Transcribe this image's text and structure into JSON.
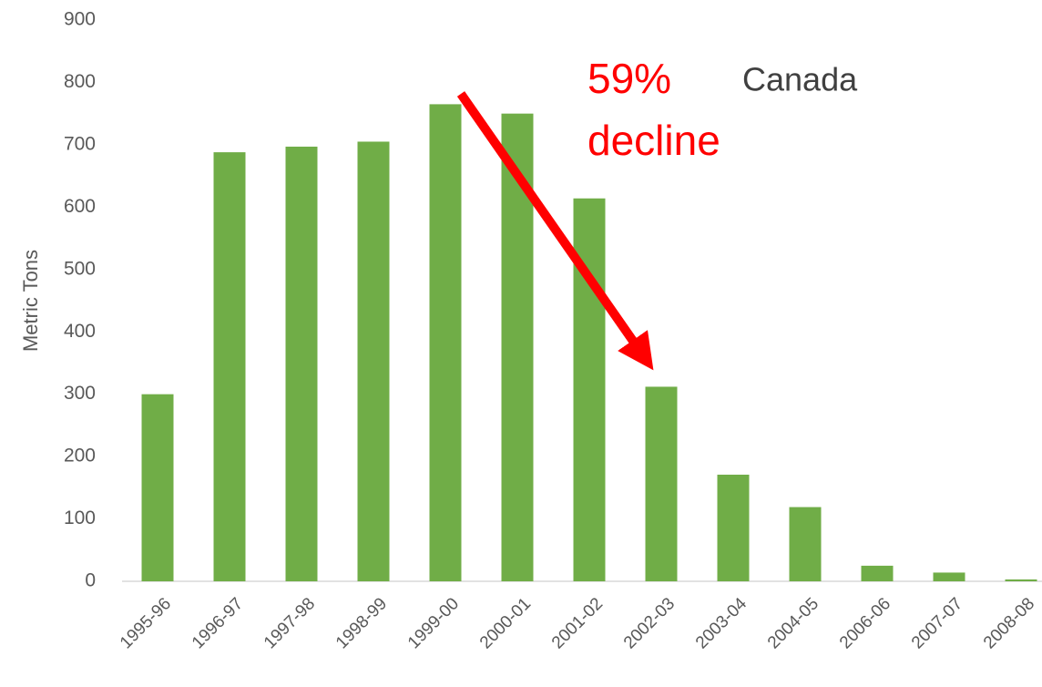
{
  "chart_data": {
    "type": "bar",
    "y_label": "Metric Tons",
    "categories": [
      "1995-96",
      "1996-97",
      "1997-98",
      "1998-99",
      "1999-00",
      "2000-01",
      "2001-02",
      "2002-03",
      "2003-04",
      "2004-05",
      "2006-06",
      "2007-07",
      "2008-08"
    ],
    "values": [
      300,
      688,
      697,
      705,
      765,
      750,
      614,
      312,
      171,
      119,
      25,
      14,
      3
    ],
    "color": "#70ad47",
    "ylim": [
      0,
      900
    ],
    "yticks": [
      0,
      100,
      200,
      300,
      400,
      500,
      600,
      700,
      800,
      900
    ],
    "grid": false,
    "annotations": [
      {
        "text": "59%",
        "color": "#ff0000"
      },
      {
        "text": "decline",
        "color": "#ff0000"
      },
      {
        "text": "Canada",
        "color": "#404040"
      }
    ]
  }
}
